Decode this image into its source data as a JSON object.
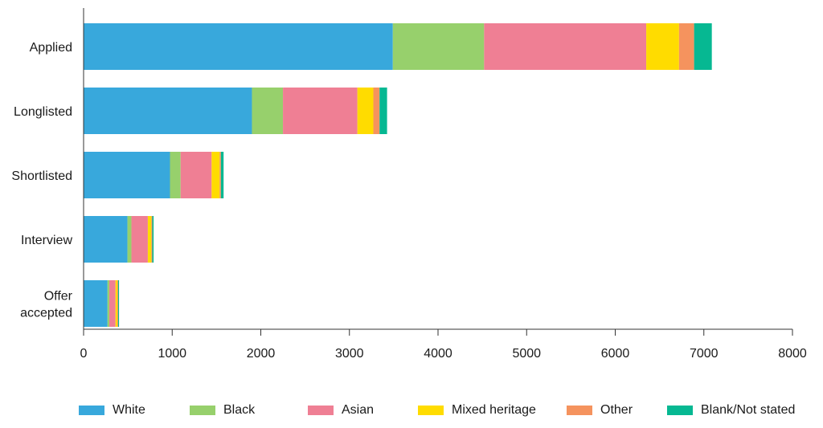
{
  "chart_data": {
    "type": "bar",
    "orientation": "horizontal",
    "stacked": true,
    "categories": [
      "Applied",
      "Longlisted",
      "Shortlisted",
      "Interview",
      "Offer accepted"
    ],
    "series": [
      {
        "name": "White",
        "color": "#38a8dc",
        "values": [
          3490,
          1900,
          975,
          495,
          270
        ]
      },
      {
        "name": "Black",
        "color": "#97d06c",
        "values": [
          1030,
          350,
          120,
          45,
          20
        ]
      },
      {
        "name": "Asian",
        "color": "#ef7f94",
        "values": [
          1830,
          840,
          350,
          185,
          70
        ]
      },
      {
        "name": "Mixed heritage",
        "color": "#ffdc00",
        "values": [
          370,
          180,
          90,
          40,
          20
        ]
      },
      {
        "name": "Other",
        "color": "#f5935e",
        "values": [
          170,
          70,
          15,
          10,
          10
        ]
      },
      {
        "name": "Blank/Not stated",
        "color": "#06b892",
        "values": [
          200,
          85,
          30,
          15,
          10
        ]
      }
    ],
    "xlim": [
      0,
      8000
    ],
    "xticks": [
      0,
      1000,
      2000,
      3000,
      4000,
      5000,
      6000,
      7000,
      8000
    ],
    "grid": false,
    "legend_position": "bottom"
  }
}
